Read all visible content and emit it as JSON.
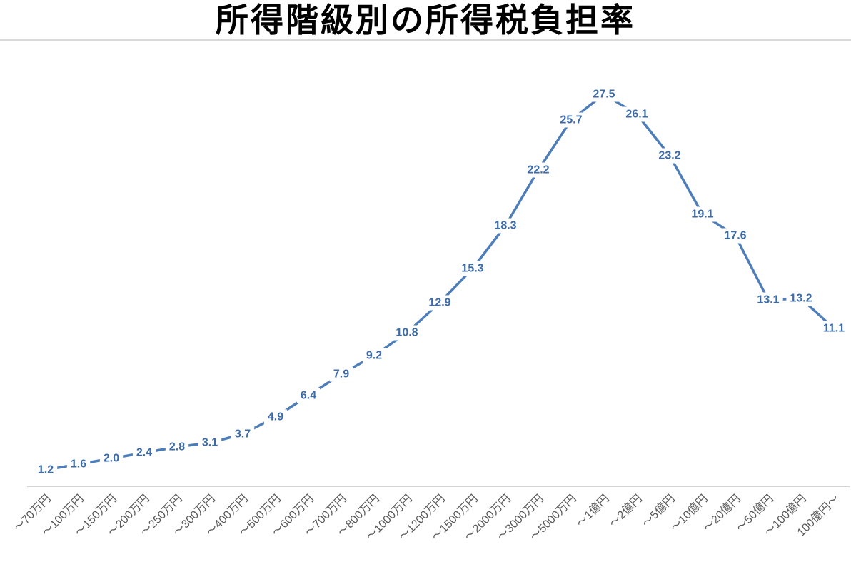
{
  "chart_data": {
    "type": "line",
    "title": "所得階級別の所得税負担率",
    "categories": [
      "～70万円",
      "～100万円",
      "～150万円",
      "～200万円",
      "～250万円",
      "～300万円",
      "～400万円",
      "～500万円",
      "～600万円",
      "～700万円",
      "～800万円",
      "～1000万円",
      "～1200万円",
      "～1500万円",
      "～2000万円",
      "～3000万円",
      "～5000万円",
      "～1億円",
      "～2億円",
      "～5億円",
      "～10億円",
      "～20億円",
      "～50億円",
      "～100億円",
      "100億円～"
    ],
    "values": [
      1.2,
      1.6,
      2.0,
      2.4,
      2.8,
      3.1,
      3.7,
      4.9,
      6.4,
      7.9,
      9.2,
      10.8,
      12.9,
      15.3,
      18.3,
      22.2,
      25.7,
      27.5,
      26.1,
      23.2,
      19.1,
      17.6,
      13.1,
      13.2,
      11.1
    ],
    "xlabel": "",
    "ylabel": "",
    "ylim": [
      0,
      30
    ],
    "grid": false,
    "legend_position": "none",
    "data_labels": "every point, one decimal, centered on point",
    "x_tick_rotation": 45,
    "colors": {
      "line": "#4e7eb9",
      "data_label": "#3c6ba8",
      "x_tick_text": "#595959",
      "axis_line": "#d4d4d4",
      "title_text": "#000000",
      "title_divider": "#d9d9d9"
    }
  }
}
